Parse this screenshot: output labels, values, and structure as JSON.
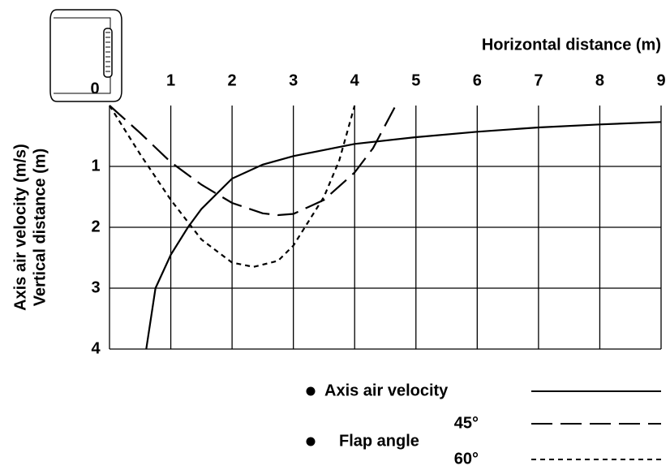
{
  "chart_data": {
    "type": "line",
    "x_label": "Horizontal distance (m)",
    "y_label": [
      "Axis air velocity (m/s)",
      "Vertical distance (m)"
    ],
    "xlim": [
      0,
      9
    ],
    "xticks": [
      0,
      1,
      2,
      3,
      4,
      5,
      6,
      7,
      8,
      9
    ],
    "ylim": [
      0,
      4
    ],
    "yticks": [
      1,
      2,
      3,
      4
    ],
    "y_inverted": true,
    "grid": true,
    "legend_group_label": "Flap angle",
    "series": [
      {
        "name": "Axis air velocity",
        "color": "#000000",
        "dash": "solid",
        "x": [
          0.6,
          0.75,
          1,
          1.28,
          1.5,
          2,
          2.5,
          3,
          4,
          5,
          6,
          7,
          8,
          9
        ],
        "values": [
          4,
          3,
          2.45,
          2,
          1.7,
          1.2,
          0.97,
          0.83,
          0.63,
          0.52,
          0.43,
          0.36,
          0.31,
          0.27
        ]
      },
      {
        "name": "45°",
        "color": "#000000",
        "dash": "long",
        "x": [
          0,
          0.5,
          1,
          1.5,
          2,
          2.5,
          2.75,
          3,
          3.5,
          4,
          4.3,
          4.67
        ],
        "values": [
          0,
          0.45,
          0.93,
          1.3,
          1.6,
          1.77,
          1.8,
          1.78,
          1.55,
          1.1,
          0.7,
          0
        ]
      },
      {
        "name": "60°",
        "color": "#000000",
        "dash": "short",
        "x": [
          0,
          0.5,
          1,
          1.5,
          2,
          2.35,
          2.75,
          3,
          3.5,
          3.75,
          4
        ],
        "values": [
          0,
          0.8,
          1.55,
          2.2,
          2.58,
          2.65,
          2.55,
          2.3,
          1.5,
          0.9,
          0
        ]
      }
    ]
  }
}
